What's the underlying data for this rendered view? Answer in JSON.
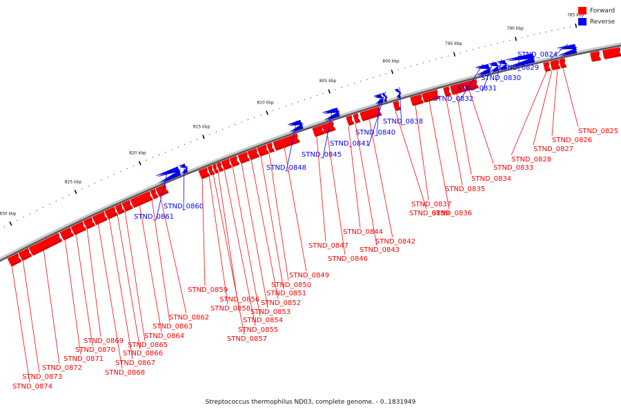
{
  "legend": {
    "forward_label": "Forward",
    "reverse_label": "Reverse",
    "forward_color": "#ff0000",
    "reverse_color": "#0000ff"
  },
  "caption": "Streptococcus thermophilus ND03, complete genome. - 0..1831949",
  "ticks": [
    {
      "label": "785 kbp"
    },
    {
      "label": "790 kbp"
    },
    {
      "label": "795 kbp"
    },
    {
      "label": "800 kbp"
    },
    {
      "label": "805 kbp"
    },
    {
      "label": "810 kbp"
    },
    {
      "label": "815 kbp"
    },
    {
      "label": "820 kbp"
    },
    {
      "label": "825 kbp"
    },
    {
      "label": "830 kbp"
    }
  ],
  "reverse_genes": [
    "STND_0824",
    "STND_0829",
    "STND_0830",
    "STND_0831",
    "STND_0832",
    "STND_0838",
    "STND_0840",
    "STND_0841",
    "STND_0845",
    "STND_0848",
    "STND_0860",
    "STND_0861"
  ],
  "forward_genes": [
    "STND_0825",
    "STND_0826",
    "STND_0827",
    "STND_0828",
    "STND_0833",
    "STND_0834",
    "STND_0835",
    "STND_0836",
    "STND_0837",
    "STND_0839",
    "STND_0842",
    "STND_0843",
    "STND_0844",
    "STND_0846",
    "STND_0847",
    "STND_0849",
    "STND_0850",
    "STND_0851",
    "STND_0852",
    "STND_0853",
    "STND_0854",
    "STND_0855",
    "STND_0856",
    "STND_0857",
    "STND_0858",
    "STND_0859",
    "STND_0862",
    "STND_0863",
    "STND_0864",
    "STND_0865",
    "STND_0866",
    "STND_0867",
    "STND_0868",
    "STND_0869",
    "STND_0870",
    "STND_0871",
    "STND_0872",
    "STND_0873",
    "STND_0874"
  ]
}
